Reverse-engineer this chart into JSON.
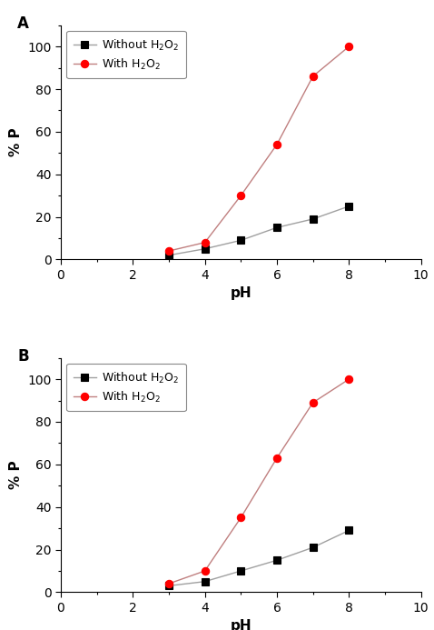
{
  "panel_A": {
    "label": "A",
    "without_h2o2": {
      "x": [
        3,
        4,
        5,
        6,
        7,
        8
      ],
      "y": [
        2,
        5,
        9,
        15,
        19,
        25
      ]
    },
    "with_h2o2": {
      "x": [
        3,
        4,
        5,
        6,
        7,
        8
      ],
      "y": [
        4,
        8,
        30,
        54,
        86,
        100
      ]
    }
  },
  "panel_B": {
    "label": "B",
    "without_h2o2": {
      "x": [
        3,
        4,
        5,
        6,
        7,
        8
      ],
      "y": [
        3,
        5,
        10,
        15,
        21,
        29
      ]
    },
    "with_h2o2": {
      "x": [
        3,
        4,
        5,
        6,
        7,
        8
      ],
      "y": [
        4,
        10,
        35,
        63,
        89,
        100
      ]
    }
  },
  "xlabel": "pH",
  "ylabel": "% P",
  "xlim": [
    0,
    10
  ],
  "ylim": [
    0,
    110
  ],
  "xticks": [
    0,
    2,
    4,
    6,
    8,
    10
  ],
  "yticks": [
    0,
    20,
    40,
    60,
    80,
    100
  ],
  "line_color_without": "#a0a0a0",
  "line_color_with": "#c08080",
  "marker_color_without": "#000000",
  "marker_color_with": "#ff0000",
  "marker_style_without": "s",
  "marker_style_with": "o",
  "marker_size": 6,
  "line_width": 1.0,
  "legend_label_without": "Without H$_2$O$_2$",
  "legend_label_with": "With H$_2$O$_2$",
  "font_size_label": 11,
  "font_size_tick": 10,
  "font_size_legend": 9,
  "font_size_panel_label": 12
}
